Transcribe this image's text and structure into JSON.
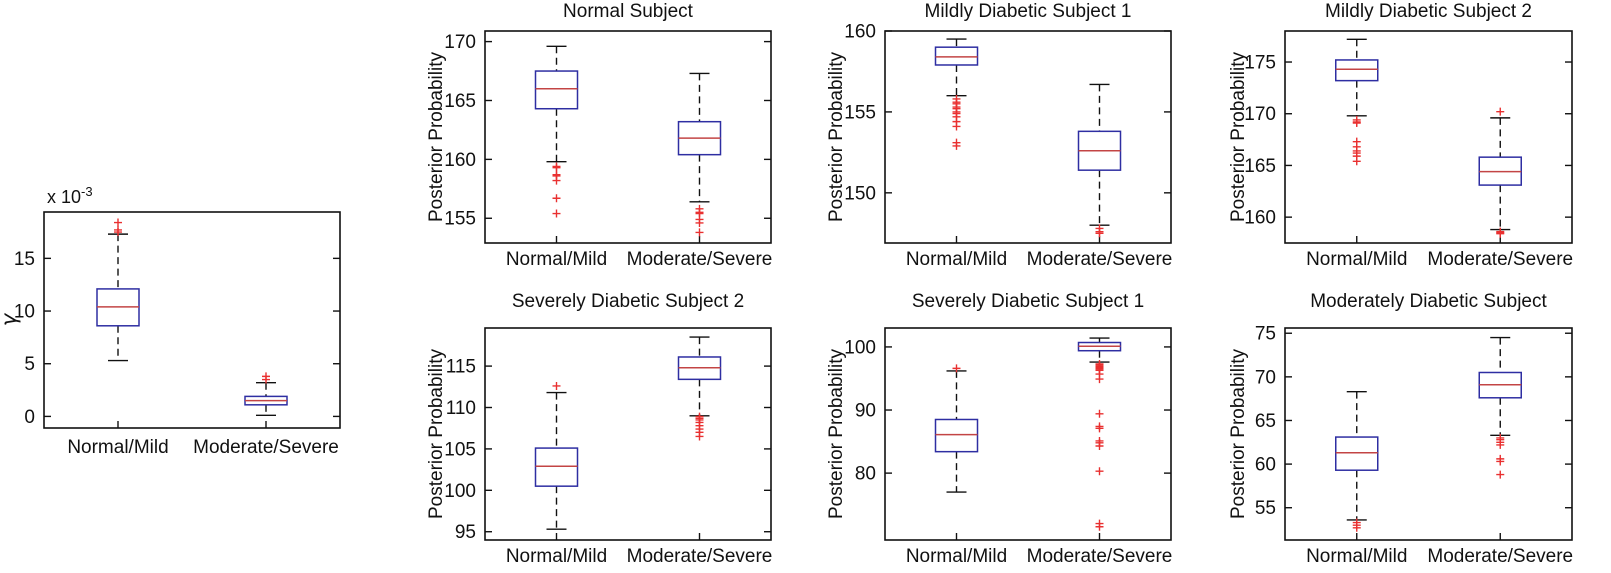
{
  "colors": {
    "box_edge": "#2e2ea2",
    "median": "#c34444",
    "outlier": "#e93030",
    "axis": "#111111",
    "background": "#ffffff"
  },
  "chart_data": [
    {
      "type": "box",
      "title": "",
      "ylabel": "γ",
      "scale_prefix": "x 10",
      "scale_exponent": "-3",
      "categories": [
        "Normal/Mild",
        "Moderate/Severe"
      ],
      "yticks": [
        0,
        5,
        10,
        15
      ],
      "ylim": [
        -1.1,
        19.4
      ],
      "boxes": [
        {
          "category": "Normal/Mild",
          "whislo": 5.3,
          "q1": 8.6,
          "med": 10.4,
          "q3": 12.1,
          "whishi": 17.3,
          "fliers": [
            17.5,
            17.7,
            18.4
          ]
        },
        {
          "category": "Moderate/Severe",
          "whislo": 0.1,
          "q1": 1.1,
          "med": 1.5,
          "q3": 1.9,
          "whishi": 3.2,
          "fliers": [
            3.5,
            3.8
          ]
        }
      ]
    },
    {
      "type": "box",
      "title": "Normal Subject",
      "ylabel": "Posterior Probability",
      "categories": [
        "Normal/Mild",
        "Moderate/Severe"
      ],
      "yticks": [
        155,
        160,
        165,
        170
      ],
      "ylim": [
        152.9,
        170.9
      ],
      "boxes": [
        {
          "category": "Normal/Mild",
          "whislo": 159.8,
          "q1": 164.3,
          "med": 166.0,
          "q3": 167.5,
          "whishi": 169.6,
          "fliers": [
            159.4,
            159.3,
            158.7,
            158.6,
            158.2,
            156.7,
            155.4
          ]
        },
        {
          "category": "Moderate/Severe",
          "whislo": 156.4,
          "q1": 160.4,
          "med": 161.8,
          "q3": 163.2,
          "whishi": 167.3,
          "fliers": [
            155.8,
            155.5,
            155.4,
            154.9,
            154.6,
            153.8
          ]
        }
      ]
    },
    {
      "type": "box",
      "title": "Mildly Diabetic Subject 1",
      "ylabel": "Posterior Probability",
      "categories": [
        "Normal/Mild",
        "Moderate/Severe"
      ],
      "yticks": [
        150,
        155,
        160
      ],
      "ylim": [
        146.9,
        160.0
      ],
      "boxes": [
        {
          "category": "Normal/Mild",
          "whislo": 156.0,
          "q1": 157.9,
          "med": 158.4,
          "q3": 159.0,
          "whishi": 159.5,
          "fliers": [
            155.8,
            155.6,
            155.5,
            155.3,
            155.2,
            155.0,
            154.9,
            154.7,
            154.4,
            154.1,
            153.1,
            152.9
          ]
        },
        {
          "category": "Moderate/Severe",
          "whislo": 148.0,
          "q1": 151.4,
          "med": 152.6,
          "q3": 153.8,
          "whishi": 156.7,
          "fliers": [
            147.8,
            147.6,
            147.5
          ]
        }
      ]
    },
    {
      "type": "box",
      "title": "Mildly Diabetic Subject 2",
      "ylabel": "Posterior Probability",
      "categories": [
        "Normal/Mild",
        "Moderate/Severe"
      ],
      "yticks": [
        160,
        165,
        170,
        175
      ],
      "ylim": [
        157.5,
        178.0
      ],
      "boxes": [
        {
          "category": "Normal/Mild",
          "whislo": 169.8,
          "q1": 173.2,
          "med": 174.3,
          "q3": 175.2,
          "whishi": 177.2,
          "fliers": [
            169.4,
            169.2,
            169.1,
            167.3,
            166.8,
            166.4,
            166.2,
            165.9,
            165.4
          ]
        },
        {
          "category": "Moderate/Severe",
          "whislo": 158.8,
          "q1": 163.1,
          "med": 164.4,
          "q3": 165.8,
          "whishi": 169.6,
          "fliers": [
            170.2,
            158.6,
            158.5,
            158.4
          ]
        }
      ]
    },
    {
      "type": "box",
      "title": "Severely Diabetic Subject 2",
      "ylabel": "Posterior Probability",
      "categories": [
        "Normal/Mild",
        "Moderate/Severe"
      ],
      "yticks": [
        95,
        100,
        105,
        110,
        115
      ],
      "ylim": [
        94.0,
        119.6
      ],
      "boxes": [
        {
          "category": "Normal/Mild",
          "whislo": 95.3,
          "q1": 100.5,
          "med": 102.9,
          "q3": 105.1,
          "whishi": 111.8,
          "fliers": [
            112.6
          ]
        },
        {
          "category": "Moderate/Severe",
          "whislo": 109.0,
          "q1": 113.4,
          "med": 114.8,
          "q3": 116.1,
          "whishi": 118.5,
          "fliers": [
            108.9,
            108.7,
            108.5,
            108.2,
            107.8,
            107.4,
            107.0,
            106.5
          ]
        }
      ]
    },
    {
      "type": "box",
      "title": "Severely Diabetic Subject 1",
      "ylabel": "Posterior Probability",
      "categories": [
        "Normal/Mild",
        "Moderate/Severe"
      ],
      "yticks": [
        80,
        90,
        100
      ],
      "ylim": [
        69.4,
        103.0
      ],
      "boxes": [
        {
          "category": "Normal/Mild",
          "whislo": 77.0,
          "q1": 83.4,
          "med": 86.1,
          "q3": 88.5,
          "whishi": 96.2,
          "fliers": [
            96.6
          ]
        },
        {
          "category": "Moderate/Severe",
          "whislo": 97.6,
          "q1": 99.4,
          "med": 100.1,
          "q3": 100.7,
          "whishi": 101.4,
          "fliers": [
            97.3,
            97.1,
            96.9,
            96.7,
            96.5,
            96.3,
            95.7,
            94.9,
            89.4,
            87.4,
            87.1,
            85.1,
            84.8,
            84.3,
            80.3,
            72.0,
            71.5
          ]
        }
      ]
    },
    {
      "type": "box",
      "title": "Moderately Diabetic Subject",
      "ylabel": "Posterior Probability",
      "categories": [
        "Normal/Mild",
        "Moderate/Severe"
      ],
      "yticks": [
        55,
        60,
        65,
        70,
        75
      ],
      "ylim": [
        51.3,
        75.6
      ],
      "boxes": [
        {
          "category": "Normal/Mild",
          "whislo": 53.6,
          "q1": 59.3,
          "med": 61.3,
          "q3": 63.1,
          "whishi": 68.3,
          "fliers": [
            53.3,
            53.0,
            52.7
          ]
        },
        {
          "category": "Moderate/Severe",
          "whislo": 63.3,
          "q1": 67.6,
          "med": 69.1,
          "q3": 70.5,
          "whishi": 74.5,
          "fliers": [
            63.0,
            62.8,
            62.5,
            62.2,
            60.6,
            60.3,
            58.8
          ]
        }
      ]
    }
  ]
}
